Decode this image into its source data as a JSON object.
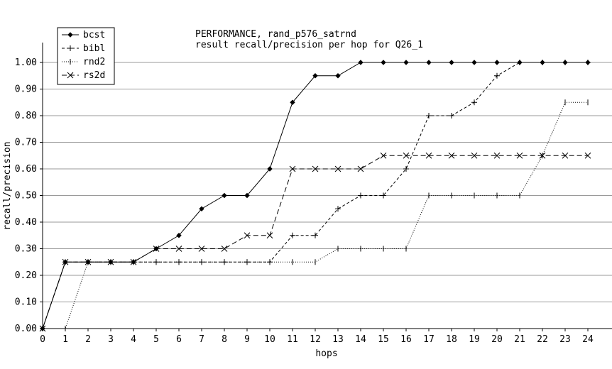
{
  "chart_data": {
    "type": "line",
    "title": "PERFORMANCE, rand_p576_satrnd",
    "subtitle": "result recall/precision per hop for Q26_1",
    "xlabel": "hops",
    "ylabel": "recall/precision",
    "xlim": [
      0,
      24
    ],
    "ylim": [
      0,
      1.05
    ],
    "x_ticks": [
      "0",
      "1",
      "2",
      "3",
      "4",
      "5",
      "6",
      "7",
      "8",
      "9",
      "10",
      "11",
      "12",
      "13",
      "14",
      "15",
      "16",
      "17",
      "18",
      "19",
      "20",
      "21",
      "22",
      "23",
      "24"
    ],
    "y_ticks": [
      "0.00",
      "0.10",
      "0.20",
      "0.30",
      "0.40",
      "0.50",
      "0.60",
      "0.70",
      "0.80",
      "0.90",
      "1.00"
    ],
    "grid": "horizontal",
    "legend_position": "top-left",
    "x": [
      0,
      1,
      2,
      3,
      4,
      5,
      6,
      7,
      8,
      9,
      10,
      11,
      12,
      13,
      14,
      15,
      16,
      17,
      18,
      19,
      20,
      21,
      22,
      23,
      24
    ],
    "series": [
      {
        "name": "bcst",
        "marker": "diamond",
        "dash": "solid",
        "values": [
          0.0,
          0.25,
          0.25,
          0.25,
          0.25,
          0.3,
          0.35,
          0.45,
          0.5,
          0.5,
          0.6,
          0.85,
          0.95,
          0.95,
          1.0,
          1.0,
          1.0,
          1.0,
          1.0,
          1.0,
          1.0,
          1.0,
          1.0,
          1.0,
          1.0
        ]
      },
      {
        "name": "bibl",
        "marker": "plus",
        "dash": "dashed",
        "values": [
          0.0,
          0.25,
          0.25,
          0.25,
          0.25,
          0.25,
          0.25,
          0.25,
          0.25,
          0.25,
          0.25,
          0.35,
          0.35,
          0.45,
          0.5,
          0.5,
          0.6,
          0.8,
          0.8,
          0.85,
          0.95,
          1.0,
          1.0,
          1.0,
          1.0
        ]
      },
      {
        "name": "rnd2",
        "marker": "vbar",
        "dash": "dotted",
        "values": [
          0.0,
          0.0,
          0.25,
          0.25,
          0.25,
          0.25,
          0.25,
          0.25,
          0.25,
          0.25,
          0.25,
          0.25,
          0.25,
          0.3,
          0.3,
          0.3,
          0.3,
          0.5,
          0.5,
          0.5,
          0.5,
          0.5,
          0.65,
          0.85,
          0.85
        ]
      },
      {
        "name": "rs2d",
        "marker": "cross",
        "dash": "longdash",
        "values": [
          0.0,
          0.25,
          0.25,
          0.25,
          0.25,
          0.3,
          0.3,
          0.3,
          0.3,
          0.35,
          0.35,
          0.6,
          0.6,
          0.6,
          0.6,
          0.65,
          0.65,
          0.65,
          0.65,
          0.65,
          0.65,
          0.65,
          0.65,
          0.65,
          0.65
        ]
      }
    ]
  }
}
